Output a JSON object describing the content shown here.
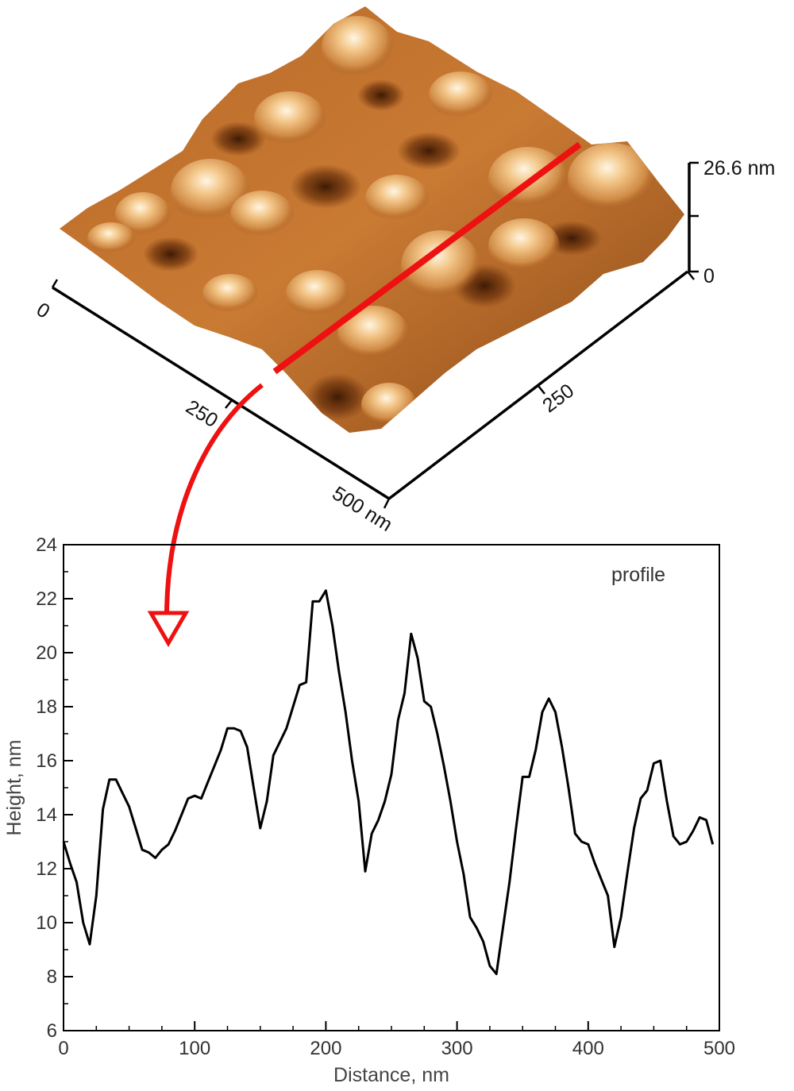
{
  "afm_image": {
    "axis_labels": {
      "x_start": "0",
      "x_mid": "250",
      "x_end": "500 nm",
      "y_mid": "250",
      "z_top": "26.6 nm",
      "z_bottom": "0"
    },
    "colors": {
      "surface_dark": "#5a2a08",
      "surface_mid": "#c5782f",
      "surface_light": "#fff3dc",
      "profile_line": "#ee1111"
    }
  },
  "chart_data": {
    "type": "line",
    "annotation": "profile",
    "xlabel": "Distance, nm",
    "ylabel": "Height, nm",
    "xlim": [
      0,
      500
    ],
    "ylim": [
      6,
      24
    ],
    "xticks": [
      0,
      100,
      200,
      300,
      400,
      500
    ],
    "yticks": [
      6,
      8,
      10,
      12,
      14,
      16,
      18,
      20,
      22,
      24
    ],
    "grid": false,
    "series": [
      {
        "color": "#000000",
        "x": [
          0,
          5,
          10,
          15,
          20,
          25,
          30,
          35,
          40,
          45,
          50,
          55,
          60,
          65,
          70,
          75,
          80,
          85,
          90,
          95,
          100,
          105,
          110,
          115,
          120,
          125,
          130,
          135,
          140,
          145,
          150,
          155,
          160,
          165,
          170,
          175,
          180,
          185,
          190,
          195,
          200,
          205,
          210,
          215,
          220,
          225,
          230,
          235,
          240,
          245,
          250,
          255,
          260,
          265,
          270,
          275,
          280,
          285,
          290,
          295,
          300,
          305,
          310,
          315,
          320,
          325,
          330,
          335,
          340,
          345,
          350,
          355,
          360,
          365,
          370,
          375,
          380,
          385,
          390,
          395,
          400,
          405,
          410,
          415,
          420,
          425,
          430,
          435,
          440,
          445,
          450,
          455,
          460,
          465,
          470,
          475,
          480,
          485,
          490,
          495
        ],
        "y": [
          13.0,
          12.2,
          11.5,
          10.0,
          9.2,
          11.0,
          14.2,
          15.3,
          15.3,
          14.8,
          14.3,
          13.5,
          12.7,
          12.6,
          12.4,
          12.7,
          12.9,
          13.4,
          14.0,
          14.6,
          14.7,
          14.6,
          15.2,
          15.8,
          16.4,
          17.2,
          17.2,
          17.1,
          16.5,
          15.0,
          13.5,
          14.5,
          16.2,
          16.7,
          17.2,
          18.0,
          18.8,
          18.9,
          21.9,
          21.9,
          22.3,
          21.0,
          19.3,
          17.8,
          16.0,
          14.5,
          11.9,
          13.3,
          13.8,
          14.5,
          15.5,
          17.5,
          18.5,
          20.7,
          19.8,
          18.2,
          18.0,
          17.0,
          15.8,
          14.5,
          13.0,
          11.8,
          10.2,
          9.8,
          9.3,
          8.4,
          8.1,
          9.8,
          11.5,
          13.5,
          15.4,
          15.4,
          16.4,
          17.8,
          18.3,
          17.8,
          16.5,
          15.0,
          13.3,
          13.0,
          12.9,
          12.2,
          11.6,
          11.0,
          9.1,
          10.2,
          11.9,
          13.5,
          14.6,
          14.9,
          15.9,
          16.0,
          14.5,
          13.2,
          12.9,
          13.0,
          13.4,
          13.9,
          13.8,
          12.9
        ]
      }
    ]
  }
}
